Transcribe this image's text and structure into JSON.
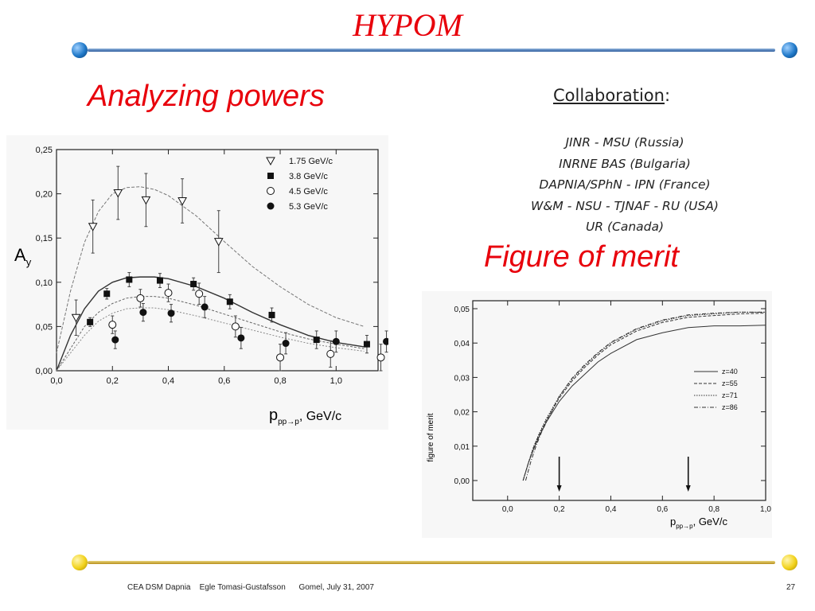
{
  "slide": {
    "title": "HYPOM",
    "heading_left": "Analyzing powers",
    "heading_right": "Figure of merit",
    "collaboration": {
      "title": "Collaboration",
      "colon": ":",
      "members": [
        "JINR - MSU (Russia)",
        "INRNE BAS (Bulgaria)",
        "DAPNIA/SPhN - IPN (France)",
        "W&M - NSU - TJNAF - RU (USA)",
        "UR (Canada)"
      ]
    },
    "footer": {
      "left": "CEA DSM Dapnia    Egle Tomasi-Gustafsson      Gomel, July 31, 2007",
      "page": "27"
    },
    "colors": {
      "title_red": "#e8000b",
      "rule_blue": "#3a6fb5",
      "dot_blue": "#1f78c8",
      "rule_gold": "#c9a227",
      "dot_gold": "#f2d21b"
    }
  },
  "chart_data": [
    {
      "type": "scatter",
      "title": "",
      "xlabel": "p",
      "xlabel_sub": "pp→p",
      "xlabel_unit": ", GeV/c",
      "ylabel": "A",
      "ylabel_sub": "y",
      "xlim": [
        0.0,
        1.15
      ],
      "ylim": [
        0.0,
        0.25
      ],
      "xticks": [
        "0,0",
        "0,2",
        "0,4",
        "0,6",
        "0,8",
        "1,0"
      ],
      "yticks": [
        "0,00",
        "0,05",
        "0,10",
        "0,15",
        "0,20",
        "0,25"
      ],
      "legend_position": "top-right",
      "series": [
        {
          "name": "1.75 GeV/c",
          "marker": "triangle-open",
          "x": [
            0.07,
            0.13,
            0.22,
            0.32,
            0.45,
            0.58
          ],
          "y": [
            0.06,
            0.163,
            0.201,
            0.193,
            0.192,
            0.146
          ],
          "err": [
            0.02,
            0.03,
            0.03,
            0.03,
            0.025,
            0.035
          ],
          "fit_x": [
            0.0,
            0.05,
            0.1,
            0.15,
            0.2,
            0.25,
            0.3,
            0.35,
            0.4,
            0.5,
            0.6,
            0.7,
            0.8,
            0.9,
            1.0,
            1.1
          ],
          "fit_y": [
            0.02,
            0.09,
            0.145,
            0.18,
            0.2,
            0.207,
            0.208,
            0.205,
            0.198,
            0.175,
            0.146,
            0.118,
            0.095,
            0.075,
            0.06,
            0.05
          ]
        },
        {
          "name": "3.8 GeV/c",
          "marker": "square-filled",
          "x": [
            0.12,
            0.18,
            0.26,
            0.37,
            0.49,
            0.62,
            0.77,
            0.93,
            1.11
          ],
          "y": [
            0.055,
            0.087,
            0.103,
            0.102,
            0.098,
            0.078,
            0.063,
            0.035,
            0.03
          ],
          "err": [
            0.005,
            0.006,
            0.008,
            0.008,
            0.007,
            0.008,
            0.008,
            0.01,
            0.01
          ],
          "fit_x": [
            0.0,
            0.05,
            0.1,
            0.15,
            0.2,
            0.25,
            0.3,
            0.35,
            0.4,
            0.5,
            0.6,
            0.7,
            0.8,
            0.9,
            1.0,
            1.1
          ],
          "fit_y": [
            0.0,
            0.04,
            0.07,
            0.09,
            0.1,
            0.105,
            0.106,
            0.106,
            0.104,
            0.095,
            0.082,
            0.066,
            0.052,
            0.04,
            0.032,
            0.027
          ]
        },
        {
          "name": "4.5 GeV/c",
          "marker": "circle-open",
          "x": [
            0.2,
            0.3,
            0.4,
            0.51,
            0.64,
            0.8,
            0.98,
            1.16
          ],
          "y": [
            0.052,
            0.082,
            0.088,
            0.087,
            0.05,
            0.015,
            0.019,
            0.015
          ],
          "err": [
            0.01,
            0.01,
            0.01,
            0.012,
            0.012,
            0.015,
            0.015,
            0.015
          ],
          "fit_x": [
            0.0,
            0.05,
            0.1,
            0.15,
            0.2,
            0.25,
            0.3,
            0.35,
            0.4,
            0.5,
            0.6,
            0.7,
            0.8,
            0.9,
            1.0,
            1.1
          ],
          "fit_y": [
            0.0,
            0.025,
            0.05,
            0.066,
            0.076,
            0.082,
            0.084,
            0.084,
            0.082,
            0.074,
            0.064,
            0.054,
            0.044,
            0.036,
            0.03,
            0.025
          ]
        },
        {
          "name": "5.3 GeV/c",
          "marker": "circle-filled",
          "x": [
            0.21,
            0.31,
            0.41,
            0.53,
            0.66,
            0.82,
            1.0,
            1.18
          ],
          "y": [
            0.035,
            0.066,
            0.065,
            0.072,
            0.037,
            0.031,
            0.033,
            0.033
          ],
          "err": [
            0.01,
            0.01,
            0.01,
            0.012,
            0.012,
            0.012,
            0.012,
            0.012
          ],
          "fit_x": [
            0.0,
            0.05,
            0.1,
            0.15,
            0.2,
            0.25,
            0.3,
            0.35,
            0.4,
            0.5,
            0.6,
            0.7,
            0.8,
            0.9,
            1.0,
            1.1
          ],
          "fit_y": [
            0.0,
            0.02,
            0.04,
            0.056,
            0.065,
            0.07,
            0.071,
            0.071,
            0.069,
            0.062,
            0.054,
            0.046,
            0.038,
            0.031,
            0.026,
            0.022
          ]
        }
      ]
    },
    {
      "type": "line",
      "title": "",
      "xlabel": "p",
      "xlabel_sub": "pp→p",
      "xlabel_unit": ", GeV/c",
      "ylabel": "figure of merit",
      "xlim": [
        0.0,
        1.0
      ],
      "ylim": [
        0.0,
        0.05
      ],
      "xticks": [
        "0,0",
        "0,2",
        "0,4",
        "0,6",
        "0,8",
        "1,0"
      ],
      "yticks": [
        "0,00",
        "0,01",
        "0,02",
        "0,03",
        "0,04",
        "0,05"
      ],
      "legend_position": "right",
      "arrows_x": [
        0.2,
        0.7
      ],
      "series": [
        {
          "name": "z=40",
          "dash": "solid",
          "x": [
            0.06,
            0.08,
            0.1,
            0.12,
            0.15,
            0.2,
            0.25,
            0.3,
            0.35,
            0.4,
            0.5,
            0.6,
            0.7,
            0.8,
            0.9,
            1.0
          ],
          "y": [
            0.0,
            0.005,
            0.009,
            0.0125,
            0.017,
            0.023,
            0.0275,
            0.031,
            0.0345,
            0.037,
            0.041,
            0.043,
            0.0445,
            0.045,
            0.045,
            0.0452
          ]
        },
        {
          "name": "z=55",
          "dash": "dash",
          "x": [
            0.06,
            0.08,
            0.1,
            0.12,
            0.15,
            0.2,
            0.25,
            0.3,
            0.35,
            0.4,
            0.5,
            0.6,
            0.7,
            0.8,
            0.9,
            1.0
          ],
          "y": [
            0.0,
            0.005,
            0.0095,
            0.013,
            0.0175,
            0.024,
            0.029,
            0.033,
            0.0365,
            0.0395,
            0.0435,
            0.046,
            0.0475,
            0.048,
            0.0485,
            0.0487
          ]
        },
        {
          "name": "z=71",
          "dash": "dot",
          "x": [
            0.06,
            0.08,
            0.1,
            0.12,
            0.15,
            0.2,
            0.25,
            0.3,
            0.35,
            0.4,
            0.5,
            0.6,
            0.7,
            0.8,
            0.9,
            1.0
          ],
          "y": [
            0.0,
            0.005,
            0.0097,
            0.0133,
            0.018,
            0.0245,
            0.0295,
            0.0335,
            0.037,
            0.04,
            0.044,
            0.0465,
            0.048,
            0.0485,
            0.049,
            0.049
          ]
        },
        {
          "name": "z=86",
          "dash": "dashdot",
          "x": [
            0.07,
            0.09,
            0.11,
            0.13,
            0.16,
            0.2,
            0.25,
            0.3,
            0.35,
            0.4,
            0.5,
            0.6,
            0.7,
            0.8,
            0.9,
            1.0
          ],
          "y": [
            0.0,
            0.0055,
            0.01,
            0.0138,
            0.0185,
            0.0245,
            0.0298,
            0.0338,
            0.0372,
            0.0402,
            0.0442,
            0.0467,
            0.0482,
            0.0487,
            0.049,
            0.049
          ]
        }
      ]
    }
  ]
}
